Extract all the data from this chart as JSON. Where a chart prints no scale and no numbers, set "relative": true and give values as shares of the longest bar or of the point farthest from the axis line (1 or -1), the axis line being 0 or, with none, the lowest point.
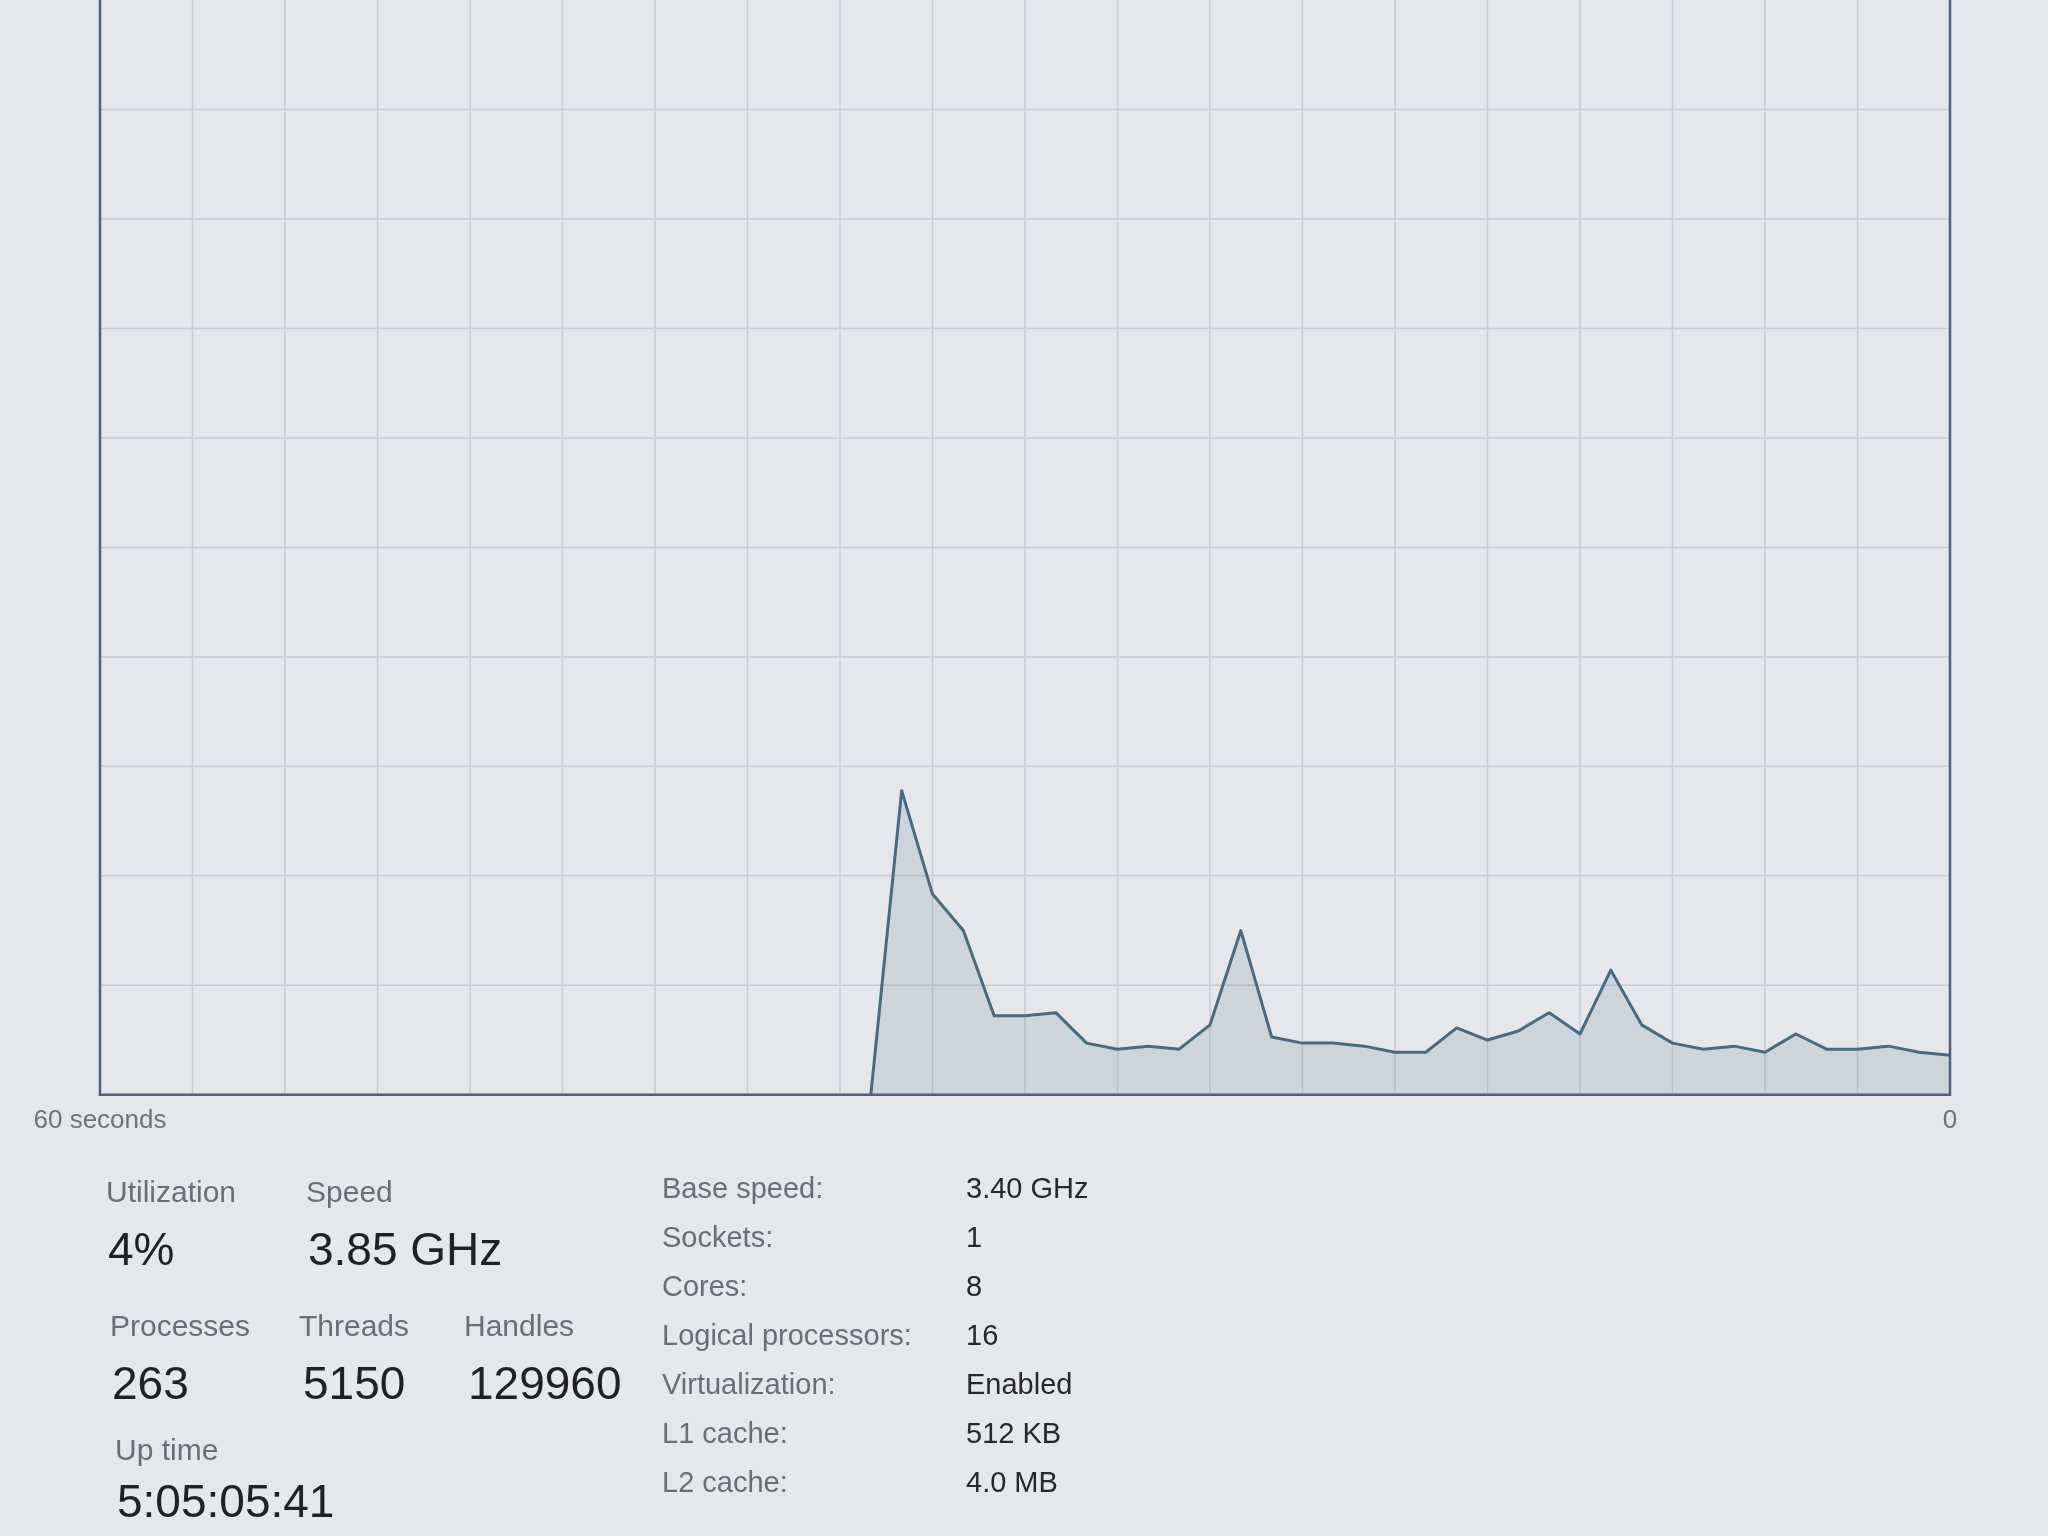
{
  "chart_data": [
    {
      "type": "area",
      "x": [
        35,
        34,
        33,
        32,
        31,
        30,
        29,
        28,
        27,
        26,
        25,
        24,
        23,
        22,
        21,
        20,
        19,
        18,
        17,
        16,
        15,
        14,
        13,
        12,
        11,
        10,
        9,
        8,
        7,
        6,
        5,
        4,
        3,
        2,
        1,
        0
      ],
      "values": [
        0,
        1,
        0.66,
        0.54,
        0.26,
        0.26,
        0.27,
        0.17,
        0.15,
        0.16,
        0.15,
        0.23,
        0.54,
        0.19,
        0.17,
        0.17,
        0.16,
        0.14,
        0.14,
        0.22,
        0.18,
        0.21,
        0.27,
        0.2,
        0.41,
        0.23,
        0.17,
        0.15,
        0.16,
        0.14,
        0.2,
        0.15,
        0.15,
        0.16,
        0.14,
        0.13
      ],
      "color": "#4a6a7e",
      "relative": true,
      "xlim": [
        60,
        0
      ],
      "xticks": [
        {
          "value": 60,
          "label": "60 seconds"
        },
        0
      ],
      "grid": true
    },
    {
      "type": "other",
      "annotations": [
        "Utilization",
        "4%",
        "Speed",
        "3.85 GHz",
        "Processes",
        "263",
        "Threads",
        "5150",
        "Handles",
        "129960",
        "Up time",
        "5:05:05:41",
        "Base speed:",
        "3.40 GHz",
        "Sockets:",
        "1",
        "Cores:",
        "8",
        "Logical processors:",
        "16",
        "Virtualization:",
        "Enabled",
        "L1 cache:",
        "512 KB",
        "L2 cache:",
        "4.0 MB"
      ]
    }
  ]
}
